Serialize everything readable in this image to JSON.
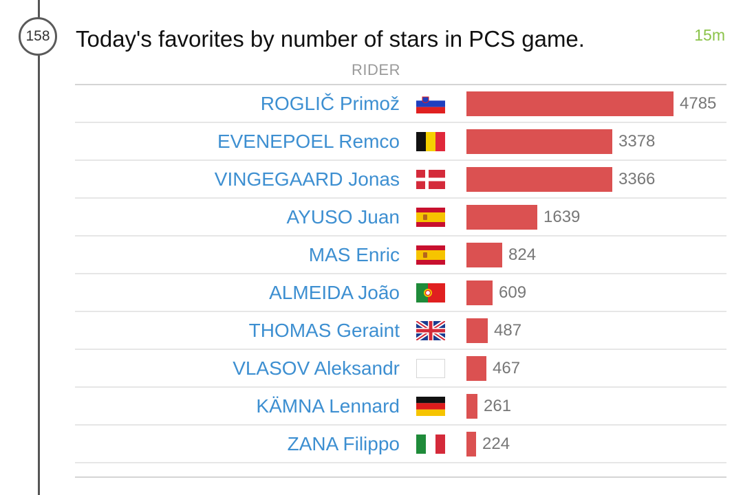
{
  "post": {
    "km": "158",
    "title": "Today's favorites by number of stars in PCS game.",
    "time": "15m"
  },
  "table": {
    "column_header": "RIDER",
    "accent_bar_color": "#db5151",
    "rider_link_color": "#3d8fd1",
    "rows": [
      {
        "rider": "ROGLIČ Primož",
        "flag": "slovenia-flag",
        "stars": 4785
      },
      {
        "rider": "EVENEPOEL Remco",
        "flag": "belgium-flag",
        "stars": 3378
      },
      {
        "rider": "VINGEGAARD Jonas",
        "flag": "denmark-flag",
        "stars": 3366
      },
      {
        "rider": "AYUSO Juan",
        "flag": "spain-flag",
        "stars": 1639
      },
      {
        "rider": "MAS Enric",
        "flag": "spain-flag",
        "stars": 824
      },
      {
        "rider": "ALMEIDA João",
        "flag": "portugal-flag",
        "stars": 609
      },
      {
        "rider": "THOMAS Geraint",
        "flag": "great-britain-flag",
        "stars": 487
      },
      {
        "rider": "VLASOV Aleksandr",
        "flag": "blank-flag",
        "stars": 467
      },
      {
        "rider": "KÄMNA Lennard",
        "flag": "germany-flag",
        "stars": 261
      },
      {
        "rider": "ZANA Filippo",
        "flag": "italy-flag",
        "stars": 224
      }
    ]
  },
  "chart_data": {
    "type": "bar",
    "orientation": "horizontal",
    "categories": [
      "ROGLIČ Primož",
      "EVENEPOEL Remco",
      "VINGEGAARD Jonas",
      "AYUSO Juan",
      "MAS Enric",
      "ALMEIDA João",
      "THOMAS Geraint",
      "VLASOV Aleksandr",
      "KÄMNA Lennard",
      "ZANA Filippo"
    ],
    "values": [
      4785,
      3378,
      3366,
      1639,
      824,
      609,
      487,
      467,
      261,
      224
    ],
    "title": "Today's favorites by number of stars in PCS game.",
    "xlabel": "",
    "ylabel": "RIDER",
    "grid": false
  }
}
